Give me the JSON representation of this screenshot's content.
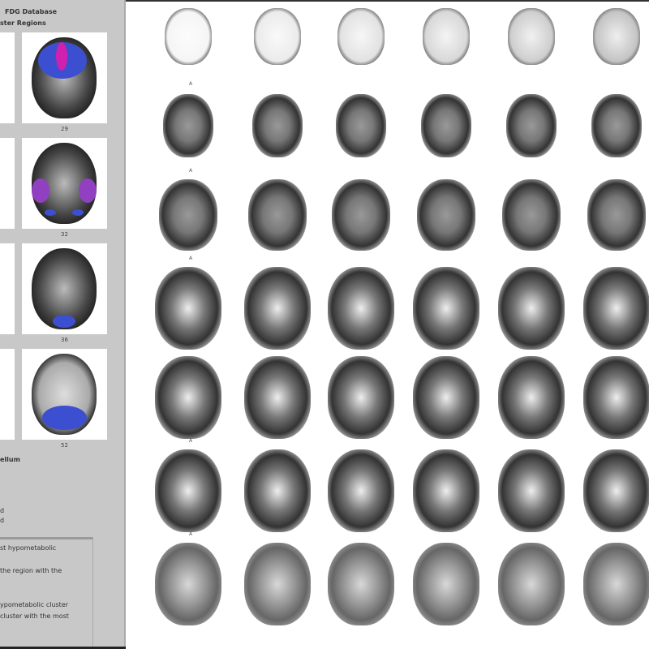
{
  "panel": {
    "title_line1": "FDG Database",
    "title_line2": "ster Regions",
    "thumbnails": [
      {
        "label": "29"
      },
      {
        "label": "32"
      },
      {
        "label": "36"
      },
      {
        "label": "52"
      }
    ],
    "section_label": "ellum",
    "small_lines": [
      "d",
      "d"
    ],
    "legend_lines": [
      "st hypometabolic",
      "the region with the",
      "ypometabolic cluster",
      "cluster with the most"
    ]
  },
  "overlay_colors": {
    "blue": "#3b4fd0",
    "magenta": "#d020b0",
    "purple": "#9040c0"
  },
  "grid": {
    "rows": 7,
    "columns": 6,
    "row_markers": [
      "A",
      "A",
      "A",
      "A",
      "A",
      "A"
    ]
  }
}
